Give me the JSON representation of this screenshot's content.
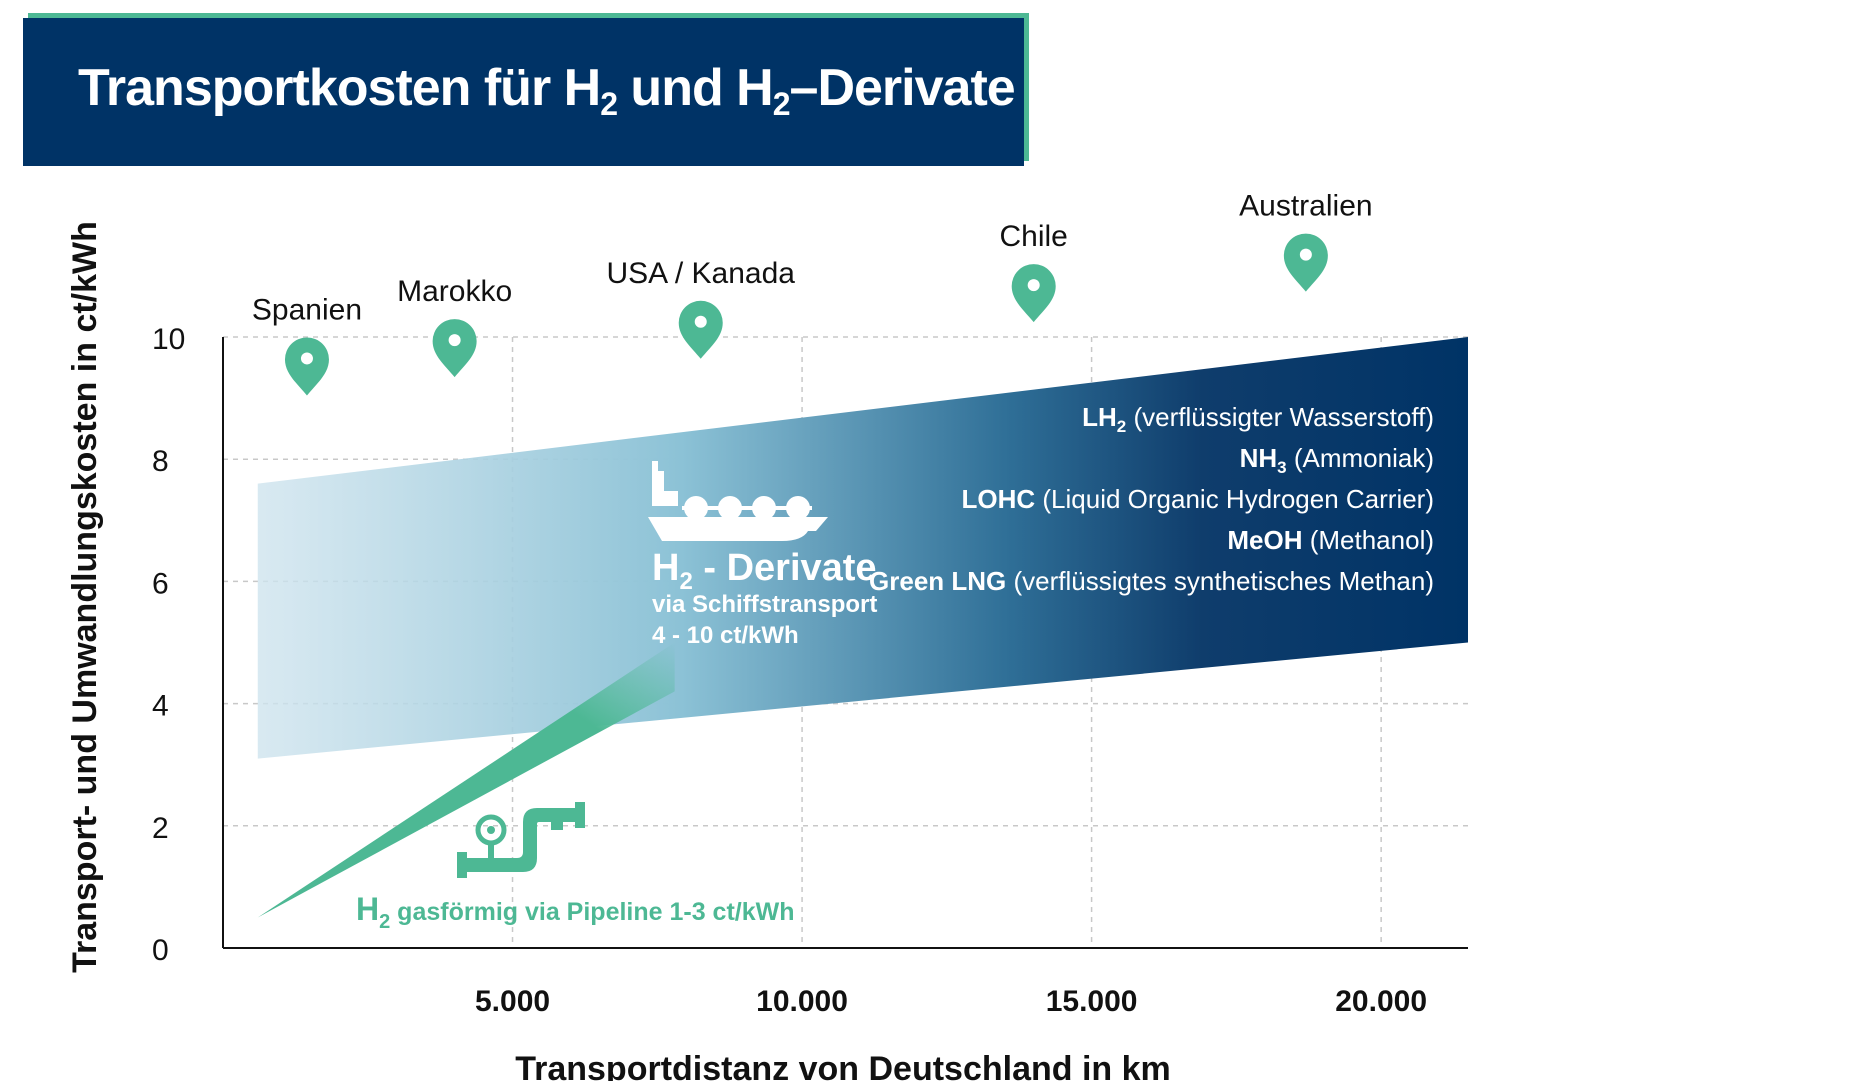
{
  "title": {
    "prefix": "Transportkosten für H",
    "sub1": "2",
    "middle": " und H",
    "sub2": "2",
    "suffix": "–Derivate"
  },
  "colors": {
    "navy": "#003366",
    "green": "#4db894",
    "light_blue": "#cfe4ee"
  },
  "chart_data": {
    "type": "area",
    "xlabel": "Transportdistanz von Deutschland in km",
    "ylabel": "Transport- und Umwandlungskosten in ct/kWh",
    "xlim": [
      0,
      21500
    ],
    "ylim": [
      0,
      10
    ],
    "x_ticks": [
      5000,
      10000,
      15000,
      20000
    ],
    "x_tick_labels": [
      "5.000",
      "10.000",
      "15.000",
      "20.000"
    ],
    "y_ticks": [
      0,
      2,
      4,
      6,
      8,
      10
    ],
    "y_tick_labels": [
      "0",
      "2",
      "4",
      "6",
      "8",
      "10"
    ],
    "grid": true,
    "series": [
      {
        "name": "H2 - Derivate via Schiffstransport",
        "label_title_main": "H",
        "label_title_sub": "2",
        "label_title_rest": " - Derivate",
        "label_line1": "via Schiffstransport",
        "label_line2": "4 - 10 ct/kWh",
        "x_start": 600,
        "x_end": 21500,
        "lower": [
          3.1,
          5.0
        ],
        "upper": [
          7.6,
          10.0
        ]
      },
      {
        "name": "H2 gasförmig via Pipeline 1-3 ct/kWh",
        "label_main": "H",
        "label_sub": "2",
        "label_rest": " gasförmig via Pipeline 1-3 ct/kWh",
        "x_start": 600,
        "x_end": 7800,
        "lower_start": 0.5,
        "lower_end": 4.2,
        "upper_end": 5.0
      }
    ],
    "locations": [
      {
        "name": "Spanien",
        "x": 1450,
        "y": 9.6
      },
      {
        "name": "Marokko",
        "x": 4000,
        "y": 9.9
      },
      {
        "name": "USA / Kanada",
        "x": 8250,
        "y": 10.2
      },
      {
        "name": "Chile",
        "x": 14000,
        "y": 10.8
      },
      {
        "name": "Australien",
        "x": 18700,
        "y": 11.3
      }
    ],
    "legend_derivatives": [
      {
        "bold": "LH",
        "sub": "2",
        "rest": " (verflüssigter Wasserstoff)"
      },
      {
        "bold": "NH",
        "sub": "3",
        "rest": " (Ammoniak)"
      },
      {
        "bold": "LOHC",
        "sub": "",
        "rest": " (Liquid Organic Hydrogen Carrier)"
      },
      {
        "bold": "MeOH",
        "sub": "",
        "rest": " (Methanol)"
      },
      {
        "bold": "Green LNG",
        "sub": "",
        "rest": " (verflüssigtes synthetisches Methan)"
      }
    ]
  }
}
